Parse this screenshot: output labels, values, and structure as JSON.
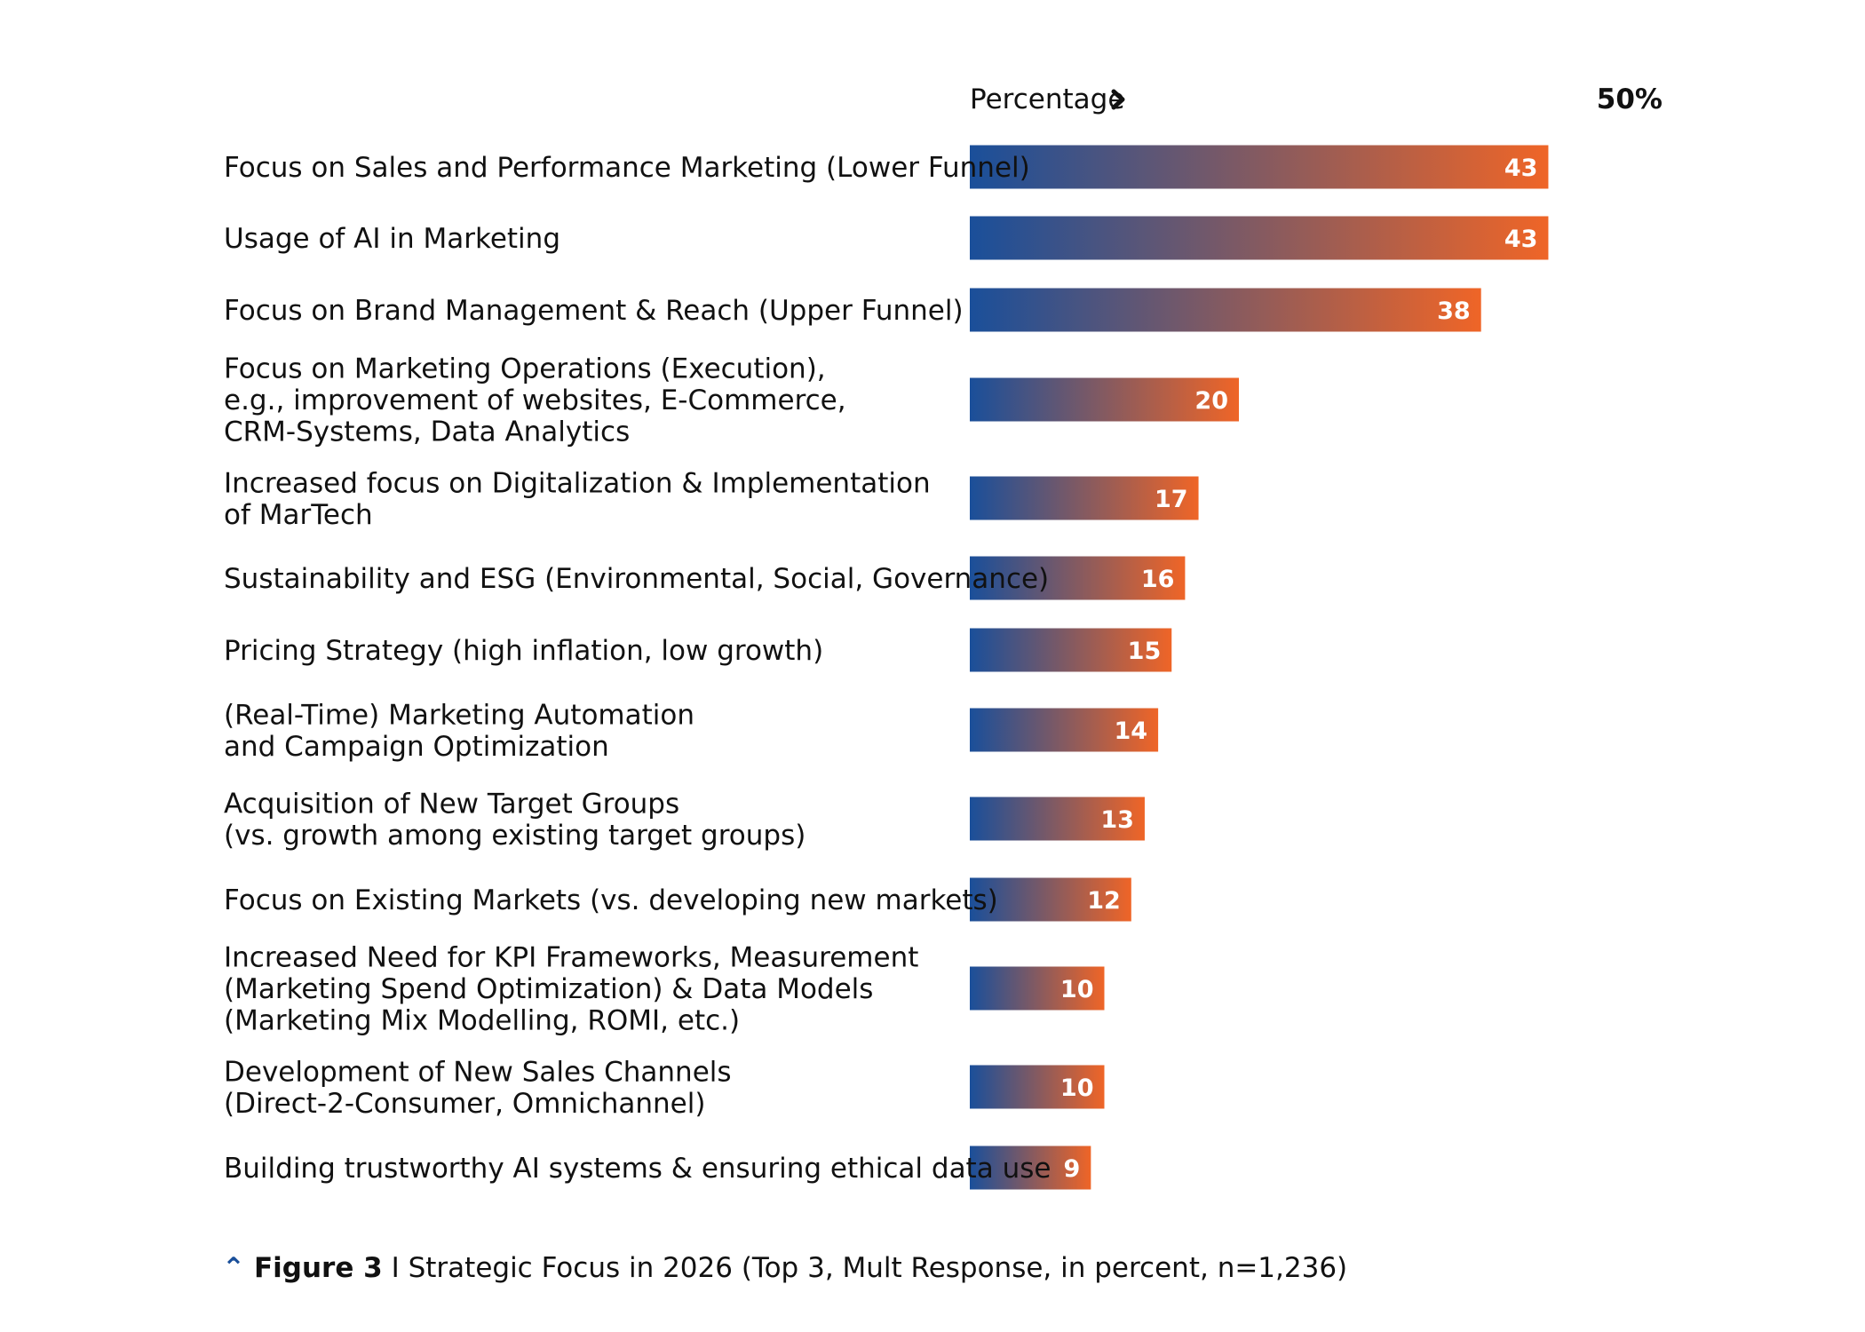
{
  "colors": {
    "gradient_start": "#1a4f9a",
    "gradient_end": "#ef6527",
    "icon_blue": "#1a4f9a"
  },
  "chart_data": {
    "type": "bar",
    "orientation": "horizontal",
    "axis_title": "Percentage",
    "axis_title_icon": "chevron-right-icon",
    "axis_max_label": "50%",
    "xlim": [
      0,
      50
    ],
    "categories": [
      [
        "Focus on Sales and Performance Marketing (Lower Funnel)"
      ],
      [
        "Usage of AI in Marketing"
      ],
      [
        "Focus on Brand Management & Reach (Upper Funnel)"
      ],
      [
        "Focus on Marketing Operations (Execution),",
        "e.g., improvement of websites, E-Commerce,",
        "CRM-Systems, Data Analytics"
      ],
      [
        "Increased focus on Digitalization & Implementation",
        "of MarTech"
      ],
      [
        "Sustainability and ESG (Environmental, Social, Governance)"
      ],
      [
        "Pricing Strategy (high inflation, low growth)"
      ],
      [
        "(Real-Time) Marketing Automation",
        "and Campaign Optimization"
      ],
      [
        "Acquisition of New Target Groups",
        "(vs. growth among existing target groups)"
      ],
      [
        "Focus on Existing Markets (vs. developing new markets)"
      ],
      [
        "Increased Need for KPI Frameworks, Measurement",
        "(Marketing Spend Optimization) & Data Models",
        "(Marketing Mix Modelling, ROMI, etc.)"
      ],
      [
        "Development of New Sales Channels",
        "(Direct-2-Consumer, Omnichannel)"
      ],
      [
        "Building trustworthy AI systems & ensuring ethical data use"
      ]
    ],
    "values": [
      43,
      43,
      38,
      20,
      17,
      16,
      15,
      14,
      13,
      12,
      10,
      10,
      9
    ],
    "value_labels": [
      "43",
      "43",
      "38",
      "20",
      "17",
      "16",
      "15",
      "14",
      "13",
      "12",
      "10",
      "10",
      "9"
    ],
    "grid": false,
    "legend": "none"
  },
  "caption": {
    "icon": "chevron-up-icon",
    "figure_label": "Figure 3",
    "separator": " I ",
    "text": "Strategic Focus in 2026 (Top 3, Mult Response, in percent, n=1,236)"
  }
}
